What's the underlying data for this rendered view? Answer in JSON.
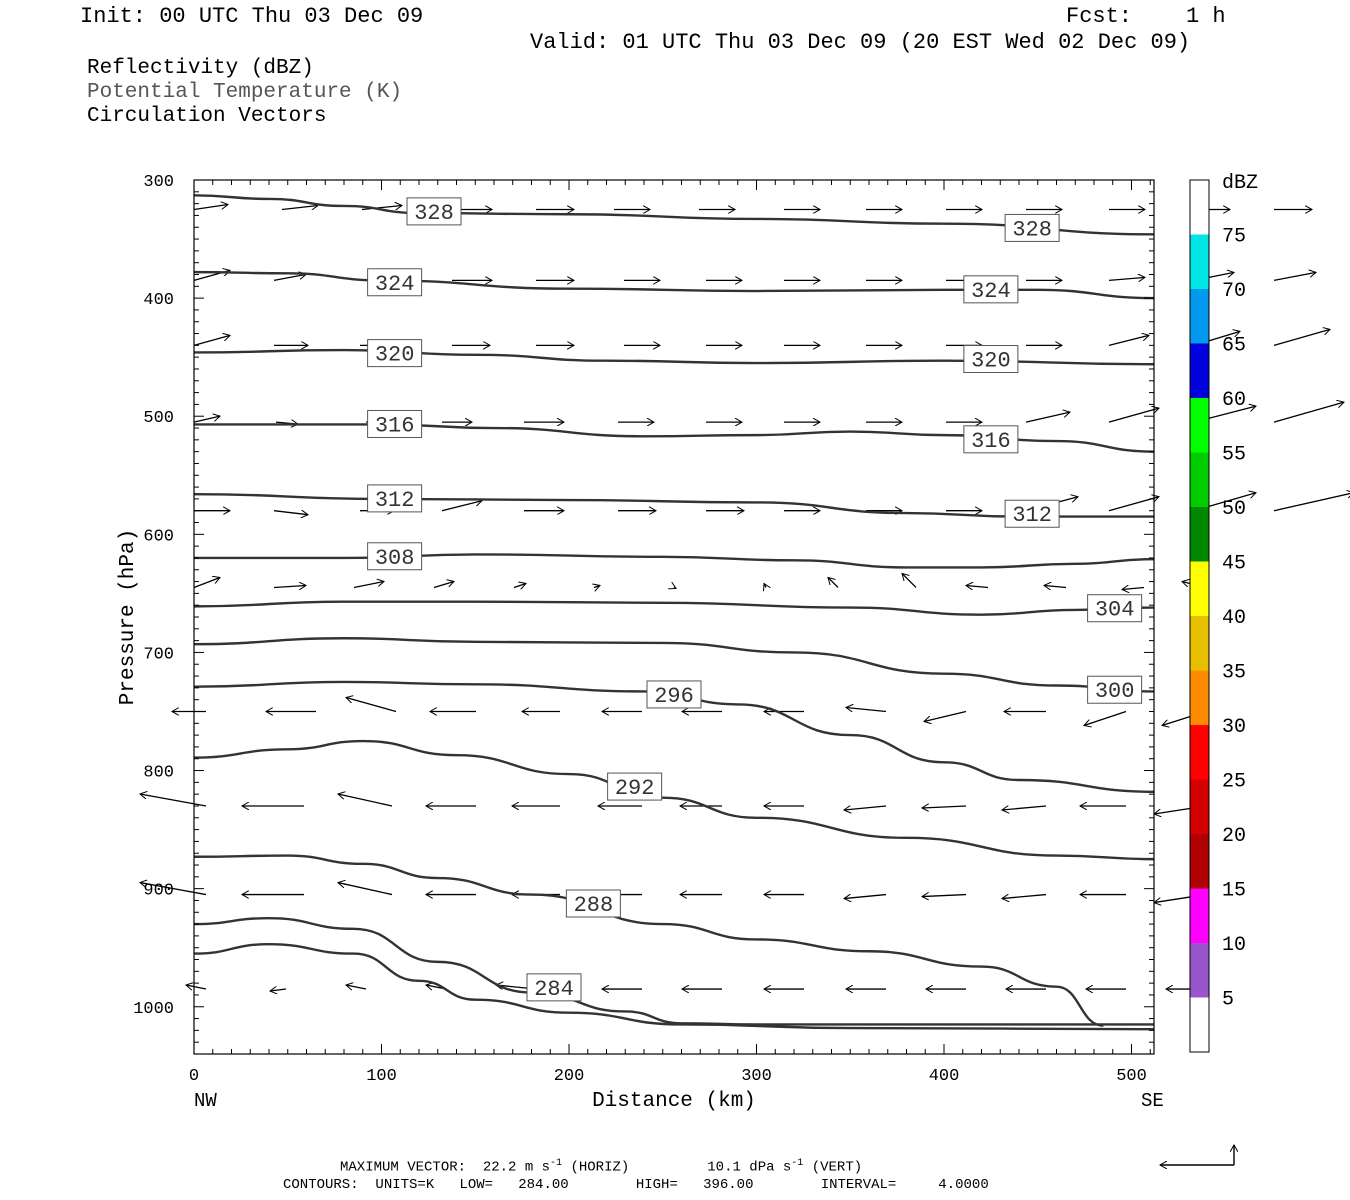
{
  "header": {
    "init": "Init: 00 UTC Thu 03 Dec 09",
    "fcst_label": "Fcst:",
    "fcst_value": "1 h",
    "valid": "Valid: 01 UTC Thu 03 Dec 09 (20 EST Wed 02 Dec 09)"
  },
  "legend_lines": {
    "reflectivity": "Reflectivity (dBZ)",
    "theta": "Potential Temperature (K)",
    "vectors": "Circulation Vectors"
  },
  "footer": {
    "max_vector": "MAXIMUM VECTOR:  22.2 m s",
    "max_vector_horiz": "-1",
    "max_vector_horiz_tail": " (HORIZ)",
    "max_vector_vert": "10.1 dPa s",
    "max_vector_vert_sup": "-1",
    "max_vector_vert_tail": " (VERT)",
    "contours": "CONTOURS:  UNITS=K   LOW=   284.00        HIGH=   396.00        INTERVAL=     4.0000"
  },
  "chart_data": {
    "type": "line",
    "xlabel": "Distance (km)",
    "ylabel": "Pressure (hPa)",
    "xlim": [
      0,
      512
    ],
    "ylim": [
      300,
      1040
    ],
    "y_inverted": true,
    "x_ticks": [
      "0",
      "100",
      "200",
      "300",
      "400",
      "500"
    ],
    "y_ticks": [
      "300",
      "400",
      "500",
      "600",
      "700",
      "800",
      "900",
      "1000"
    ],
    "x_end_labels": {
      "left": "NW",
      "right": "SE"
    },
    "colorbar": {
      "title": "dBZ",
      "labels": [
        "5",
        "10",
        "15",
        "20",
        "25",
        "30",
        "35",
        "40",
        "45",
        "50",
        "55",
        "60",
        "65",
        "70",
        "75"
      ],
      "colors": [
        "#ffffff",
        "#00e5e5",
        "#0099ee",
        "#0000dd",
        "#00ff00",
        "#00cc00",
        "#008800",
        "#ffff00",
        "#e5bf00",
        "#ff8c00",
        "#ff0000",
        "#d40000",
        "#b00000",
        "#ff00ff",
        "#9955cc",
        "#ffffff"
      ]
    },
    "isentropes": [
      {
        "label": "328",
        "points": [
          [
            0,
            313
          ],
          [
            40,
            316
          ],
          [
            80,
            322
          ],
          [
            120,
            328
          ],
          [
            200,
            329
          ],
          [
            300,
            333
          ],
          [
            400,
            337
          ],
          [
            512,
            346
          ]
        ],
        "label_at": [
          [
            128,
            327
          ],
          [
            447,
            341
          ]
        ]
      },
      {
        "label": "324",
        "points": [
          [
            0,
            378
          ],
          [
            50,
            379
          ],
          [
            100,
            385
          ],
          [
            200,
            392
          ],
          [
            300,
            394
          ],
          [
            400,
            393
          ],
          [
            450,
            393
          ],
          [
            512,
            400
          ]
        ],
        "label_at": [
          [
            107,
            387
          ],
          [
            425,
            393
          ]
        ]
      },
      {
        "label": "320",
        "points": [
          [
            0,
            446
          ],
          [
            80,
            444
          ],
          [
            150,
            448
          ],
          [
            220,
            453
          ],
          [
            300,
            455
          ],
          [
            400,
            453
          ],
          [
            512,
            456
          ]
        ],
        "label_at": [
          [
            107,
            447
          ],
          [
            425,
            452
          ]
        ]
      },
      {
        "label": "316",
        "points": [
          [
            0,
            507
          ],
          [
            100,
            507
          ],
          [
            160,
            510
          ],
          [
            240,
            517
          ],
          [
            300,
            516
          ],
          [
            350,
            513
          ],
          [
            400,
            516
          ],
          [
            460,
            521
          ],
          [
            512,
            530
          ]
        ],
        "label_at": [
          [
            107,
            507
          ],
          [
            425,
            520
          ]
        ]
      },
      {
        "label": "312",
        "points": [
          [
            0,
            566
          ],
          [
            100,
            570
          ],
          [
            200,
            571
          ],
          [
            300,
            573
          ],
          [
            380,
            582
          ],
          [
            440,
            585
          ],
          [
            512,
            585
          ]
        ],
        "label_at": [
          [
            107,
            570
          ],
          [
            447,
            583
          ]
        ]
      },
      {
        "label": "308",
        "points": [
          [
            0,
            620
          ],
          [
            80,
            620
          ],
          [
            150,
            617
          ],
          [
            250,
            619
          ],
          [
            320,
            622
          ],
          [
            380,
            628
          ],
          [
            420,
            628
          ],
          [
            470,
            625
          ],
          [
            512,
            621
          ]
        ],
        "label_at": [
          [
            107,
            619
          ]
        ]
      },
      {
        "label": "304",
        "points": [
          [
            0,
            661
          ],
          [
            80,
            657
          ],
          [
            150,
            657
          ],
          [
            250,
            658
          ],
          [
            350,
            662
          ],
          [
            420,
            668
          ],
          [
            470,
            664
          ],
          [
            512,
            662
          ]
        ],
        "label_at": [
          [
            491,
            663
          ]
        ]
      },
      {
        "label": "300",
        "points": [
          [
            0,
            693
          ],
          [
            80,
            688
          ],
          [
            150,
            691
          ],
          [
            250,
            692
          ],
          [
            320,
            700
          ],
          [
            400,
            718
          ],
          [
            460,
            728
          ],
          [
            512,
            733
          ]
        ],
        "label_at": [
          [
            491,
            732
          ]
        ]
      },
      {
        "label": "296",
        "points": [
          [
            0,
            729
          ],
          [
            80,
            725
          ],
          [
            150,
            727
          ],
          [
            240,
            733
          ],
          [
            290,
            744
          ],
          [
            350,
            770
          ],
          [
            400,
            793
          ],
          [
            440,
            808
          ],
          [
            512,
            818
          ]
        ],
        "label_at": [
          [
            256,
            736
          ]
        ]
      },
      {
        "label": "292",
        "points": [
          [
            0,
            789
          ],
          [
            50,
            782
          ],
          [
            90,
            775
          ],
          [
            140,
            787
          ],
          [
            200,
            803
          ],
          [
            250,
            823
          ],
          [
            300,
            840
          ],
          [
            380,
            857
          ],
          [
            460,
            872
          ],
          [
            512,
            875
          ]
        ],
        "label_at": [
          [
            235,
            814
          ]
        ]
      },
      {
        "label": "288",
        "points": [
          [
            0,
            873
          ],
          [
            50,
            872
          ],
          [
            90,
            879
          ],
          [
            130,
            891
          ],
          [
            180,
            905
          ],
          [
            250,
            930
          ],
          [
            300,
            943
          ],
          [
            360,
            953
          ],
          [
            420,
            966
          ],
          [
            460,
            983
          ],
          [
            485,
            1016
          ]
        ],
        "label_at": [
          [
            213,
            913
          ]
        ]
      },
      {
        "label": "284",
        "points": [
          [
            0,
            930
          ],
          [
            40,
            925
          ],
          [
            85,
            934
          ],
          [
            130,
            962
          ],
          [
            180,
            988
          ],
          [
            230,
            1004
          ],
          [
            260,
            1014
          ],
          [
            300,
            1015
          ],
          [
            400,
            1015
          ],
          [
            512,
            1015
          ]
        ],
        "label_at": [
          [
            192,
            984
          ]
        ]
      },
      {
        "label": "",
        "points": [
          [
            0,
            955
          ],
          [
            40,
            947
          ],
          [
            85,
            955
          ],
          [
            120,
            978
          ],
          [
            150,
            994
          ],
          [
            200,
            1005
          ],
          [
            260,
            1015
          ],
          [
            350,
            1018
          ],
          [
            512,
            1019
          ]
        ],
        "label_at": []
      }
    ]
  }
}
